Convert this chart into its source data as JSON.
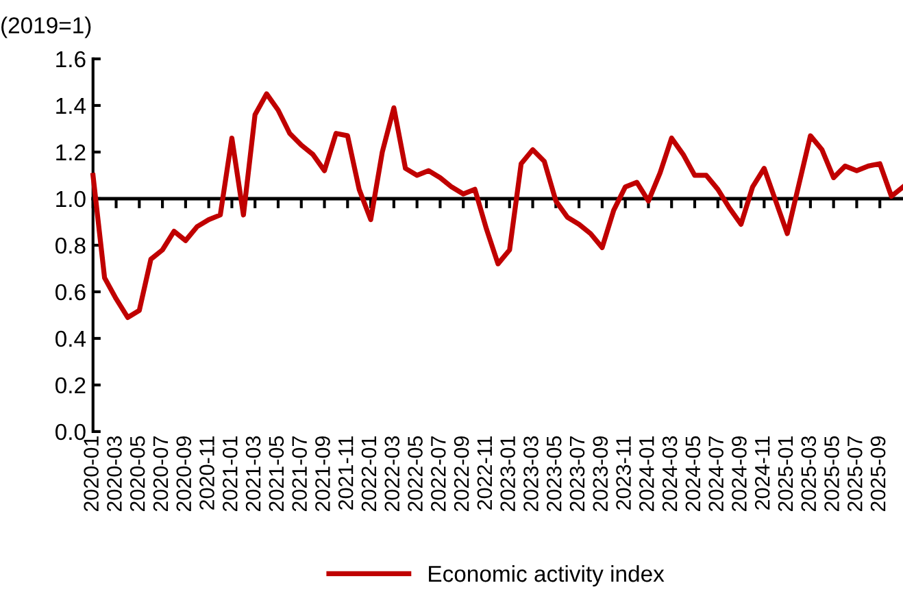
{
  "chart_data": {
    "type": "line",
    "ylabel": "(2019=1)",
    "categories": [
      "2020-01",
      null,
      "2020-03",
      null,
      "2020-05",
      null,
      "2020-07",
      null,
      "2020-09",
      null,
      "2020-11",
      null,
      "2021-01",
      null,
      "2021-03",
      null,
      "2021-05",
      null,
      "2021-07",
      null,
      "2021-09",
      null,
      "2021-11",
      null,
      "2022-01",
      null,
      "2022-03",
      null,
      "2022-05",
      null,
      "2022-07",
      null,
      "2022-09",
      null,
      "2022-11",
      null,
      "2023-01",
      null,
      "2023-03",
      null,
      "2023-05",
      null,
      "2023-07",
      null,
      "2023-09",
      null,
      "2023-11",
      null,
      "2024-01",
      null,
      "2024-03",
      null,
      "2024-05",
      null,
      "2024-07",
      null,
      "2024-09",
      null,
      "2024-11",
      null,
      "2025-01",
      null,
      "2025-03",
      null,
      "2025-05",
      null,
      "2025-07",
      null,
      "2025-09",
      null,
      null
    ],
    "series": [
      {
        "name": "Economic activity index",
        "color": "#c00000",
        "values": [
          1.1,
          0.66,
          0.57,
          0.49,
          0.52,
          0.74,
          0.78,
          0.86,
          0.82,
          0.88,
          0.91,
          0.93,
          1.26,
          0.93,
          1.36,
          1.45,
          1.38,
          1.28,
          1.23,
          1.19,
          1.12,
          1.28,
          1.27,
          1.04,
          0.91,
          1.2,
          1.39,
          1.13,
          1.1,
          1.12,
          1.09,
          1.05,
          1.02,
          1.04,
          0.87,
          0.72,
          0.78,
          1.15,
          1.21,
          1.16,
          0.99,
          0.92,
          0.89,
          0.85,
          0.79,
          0.95,
          1.05,
          1.07,
          0.99,
          1.11,
          1.26,
          1.19,
          1.1,
          1.1,
          1.04,
          0.96,
          0.89,
          1.05,
          1.13,
          0.99,
          0.85,
          1.06,
          1.27,
          1.21,
          1.09,
          1.14,
          1.12,
          1.14,
          1.15,
          1.01,
          1.05
        ]
      }
    ],
    "ylim": [
      0,
      1.6
    ],
    "yticks": [
      {
        "value": 0,
        "label": "0.0"
      },
      {
        "value": 0.2,
        "label": "0.2"
      },
      {
        "value": 0.4,
        "label": "0.4"
      },
      {
        "value": 0.6,
        "label": "0.6"
      },
      {
        "value": 0.8,
        "label": "0.8"
      },
      {
        "value": 1.0,
        "label": "1.0"
      },
      {
        "value": 1.2,
        "label": "1.2"
      },
      {
        "value": 1.4,
        "label": "1.4"
      },
      {
        "value": 1.6,
        "label": "1.6"
      }
    ],
    "ref_lines": [
      {
        "axis": "y",
        "value": 1.0,
        "color": "#000000"
      }
    ],
    "grid": false,
    "legend": "bottom",
    "marker": "none",
    "line_style": "solid"
  }
}
